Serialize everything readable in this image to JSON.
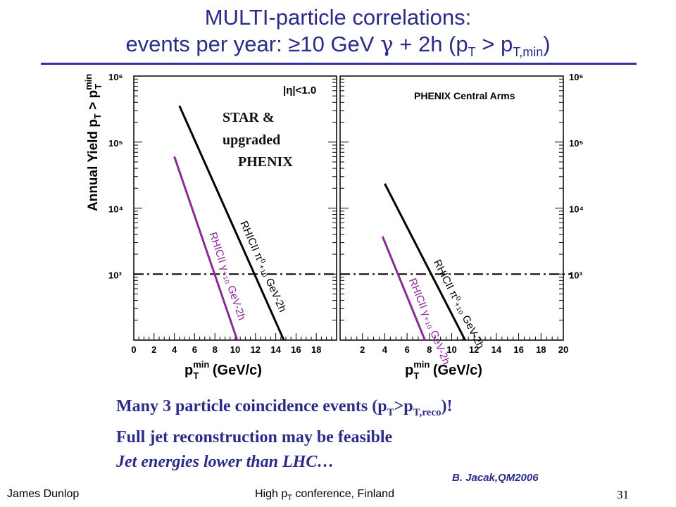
{
  "slide": {
    "title_line1": "MULTI-particle correlations:",
    "title_line2_pre": "events per year: ≥10 GeV ",
    "title_gamma": "γ",
    "title_line2_mid": " + 2h (p",
    "title_sub_T": "T",
    "title_gt": " > p",
    "title_sub_Tmin": "T,min",
    "title_close": ")",
    "bullet1_pre": "Many 3 particle coincidence events (p",
    "bullet1_subT": "T",
    "bullet1_mid": ">p",
    "bullet1_subreco": "T,reco",
    "bullet1_post": ")!",
    "bullet2": "Full jet reconstruction may be feasible",
    "bullet3": "Jet energies lower than LHC…",
    "reference": "B. Jacak,QM2006",
    "footer_left": "James Dunlop",
    "footer_center_pre": "High p",
    "footer_center_sub": "T",
    "footer_center_post": " conference, Finland",
    "slide_number": "31"
  },
  "chart_data": [
    {
      "type": "line",
      "panel": "left",
      "annotation_top": "|η|<1.0",
      "annotation_overlay": [
        "STAR &",
        "upgraded",
        "PHENIX"
      ],
      "ylabel": "Annual Yield p_T > p_T^min",
      "xlabel": "p_T^min (GeV/c)",
      "xlim": [
        0,
        20
      ],
      "ylim_log10": [
        2.0,
        6.0
      ],
      "y_scale": "log",
      "x_ticks": [
        "0",
        "2",
        "4",
        "6",
        "8",
        "10",
        "12",
        "14",
        "16",
        "18"
      ],
      "y_ticks": [
        "10³",
        "10⁴",
        "10⁵",
        "10⁶"
      ],
      "reference_line": {
        "y": 1000,
        "style": "dash-dot"
      },
      "series": [
        {
          "name": "RHICII π⁰₊₁₀ GeV-2h",
          "color": "#000000",
          "x": [
            4.5,
            14.8
          ],
          "log10_y": [
            5.55,
            2.0
          ]
        },
        {
          "name": "RHICII γ₊₁₀ GeV-2h",
          "color": "#8b2a96",
          "x": [
            4.0,
            10.2
          ],
          "log10_y": [
            4.78,
            2.0
          ]
        }
      ]
    },
    {
      "type": "line",
      "panel": "right",
      "annotation_top": "PHENIX Central Arms",
      "xlabel": "p_T^min (GeV/c)",
      "xlim": [
        0,
        20
      ],
      "ylim_log10": [
        2.0,
        6.0
      ],
      "y_scale": "log",
      "x_ticks": [
        "2",
        "4",
        "6",
        "8",
        "10",
        "12",
        "14",
        "16",
        "18",
        "20"
      ],
      "y_ticks": [
        "10³",
        "10⁴",
        "10⁵",
        "10⁶"
      ],
      "reference_line": {
        "y": 1000,
        "style": "dash-dot"
      },
      "series": [
        {
          "name": "RHICII π⁰₊₁₀ GeV-2h",
          "color": "#000000",
          "x": [
            4.0,
            11.2
          ],
          "log10_y": [
            4.37,
            2.0
          ]
        },
        {
          "name": "RHICII γ₊₁₀ GeV-2h",
          "color": "#8b2a96",
          "x": [
            3.8,
            7.6
          ],
          "log10_y": [
            3.57,
            2.0
          ]
        }
      ]
    }
  ]
}
